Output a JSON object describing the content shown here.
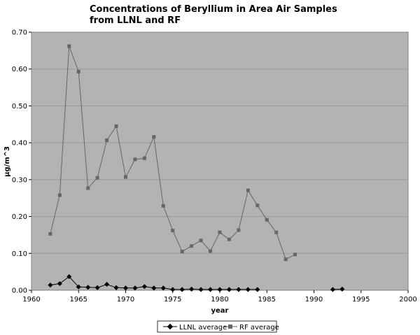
{
  "chart_data": {
    "type": "line",
    "title_line1": "Concentrations of Beryllium in Area Air Samples",
    "title_line2": "from LLNL and RF",
    "xlabel": "year",
    "ylabel": "µg/m^3",
    "xlim": [
      1960,
      2000
    ],
    "ylim": [
      0,
      0.7
    ],
    "x_ticks": [
      1960,
      1965,
      1970,
      1975,
      1980,
      1985,
      1990,
      1995,
      2000
    ],
    "y_ticks": [
      "0.00",
      "0.10",
      "0.20",
      "0.30",
      "0.40",
      "0.50",
      "0.60",
      "0.70"
    ],
    "grid": true,
    "legend_position": "bottom",
    "plot_background": "#b3b3b3",
    "series": [
      {
        "name": "LLNL average",
        "color": "#000000",
        "marker": "diamond",
        "points": [
          [
            1962,
            0.014
          ],
          [
            1963,
            0.018
          ],
          [
            1964,
            0.037
          ],
          [
            1965,
            0.009
          ],
          [
            1966,
            0.008
          ],
          [
            1967,
            0.007
          ],
          [
            1968,
            0.016
          ],
          [
            1969,
            0.007
          ],
          [
            1970,
            0.006
          ],
          [
            1971,
            0.006
          ],
          [
            1972,
            0.01
          ],
          [
            1973,
            0.006
          ],
          [
            1974,
            0.006
          ],
          [
            1975,
            0.002
          ],
          [
            1976,
            0.002
          ],
          [
            1977,
            0.003
          ],
          [
            1978,
            0.002
          ],
          [
            1979,
            0.002
          ],
          [
            1980,
            0.002
          ],
          [
            1981,
            0.002
          ],
          [
            1982,
            0.002
          ],
          [
            1983,
            0.002
          ],
          [
            1984,
            0.002
          ]
        ],
        "points_segment2": [
          [
            1992,
            0.002
          ],
          [
            1993,
            0.003
          ]
        ]
      },
      {
        "name": "RF average",
        "color": "#666666",
        "marker": "square",
        "points": [
          [
            1962,
            0.153
          ],
          [
            1963,
            0.258
          ],
          [
            1964,
            0.662
          ],
          [
            1965,
            0.593
          ],
          [
            1966,
            0.277
          ],
          [
            1967,
            0.305
          ],
          [
            1968,
            0.407
          ],
          [
            1969,
            0.445
          ],
          [
            1970,
            0.307
          ],
          [
            1971,
            0.355
          ],
          [
            1972,
            0.358
          ],
          [
            1973,
            0.416
          ],
          [
            1974,
            0.229
          ],
          [
            1975,
            0.162
          ],
          [
            1976,
            0.105
          ],
          [
            1977,
            0.12
          ],
          [
            1978,
            0.135
          ],
          [
            1979,
            0.106
          ],
          [
            1980,
            0.157
          ],
          [
            1981,
            0.138
          ],
          [
            1982,
            0.163
          ],
          [
            1983,
            0.271
          ],
          [
            1984,
            0.23
          ],
          [
            1985,
            0.191
          ],
          [
            1986,
            0.157
          ],
          [
            1987,
            0.084
          ],
          [
            1988,
            0.097
          ]
        ]
      }
    ]
  }
}
